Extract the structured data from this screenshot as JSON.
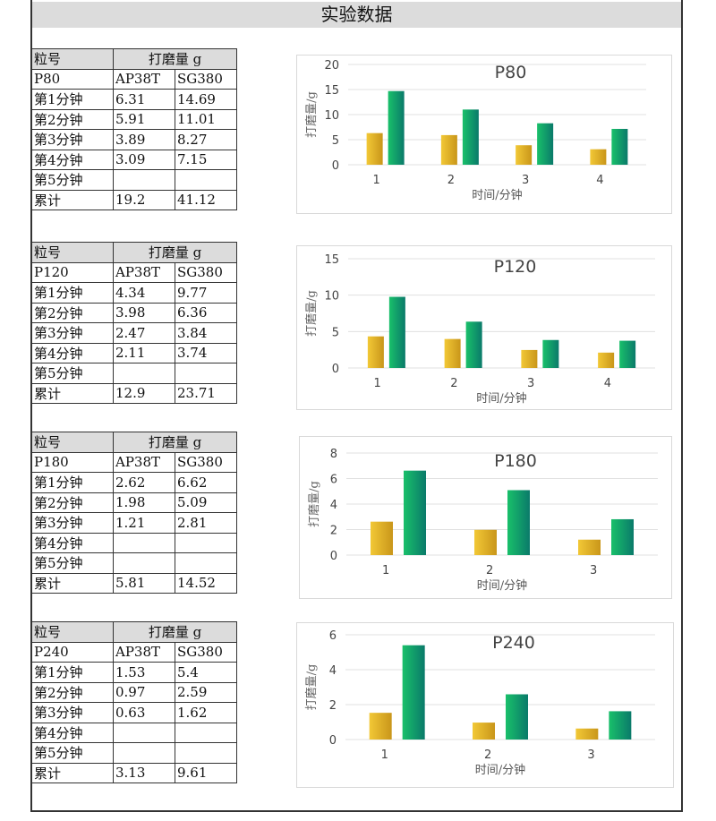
{
  "title": "实验数据",
  "tables": [
    {
      "header": [
        "粒号",
        "打磨量 g"
      ],
      "grit": "P80",
      "cols": [
        "AP38T",
        "SG380"
      ],
      "rows": [
        [
          "第1分钟",
          "6.31",
          "14.69"
        ],
        [
          "第2分钟",
          "5.91",
          "11.01"
        ],
        [
          "第3分钟",
          "3.89",
          "8.27"
        ],
        [
          "第4分钟",
          "3.09",
          "7.15"
        ],
        [
          "第5分钟",
          "",
          ""
        ],
        [
          "累计",
          "19.2",
          "41.12"
        ]
      ]
    },
    {
      "header": [
        "粒号",
        "打磨量 g"
      ],
      "grit": "P120",
      "cols": [
        "AP38T",
        "SG380"
      ],
      "rows": [
        [
          "第1分钟",
          "4.34",
          "9.77"
        ],
        [
          "第2分钟",
          "3.98",
          "6.36"
        ],
        [
          "第3分钟",
          "2.47",
          "3.84"
        ],
        [
          "第4分钟",
          "2.11",
          "3.74"
        ],
        [
          "第5分钟",
          "",
          ""
        ],
        [
          "累计",
          "12.9",
          "23.71"
        ]
      ]
    },
    {
      "header": [
        "粒号",
        "打磨量 g"
      ],
      "grit": "P180",
      "cols": [
        "AP38T",
        "SG380"
      ],
      "rows": [
        [
          "第1分钟",
          "2.62",
          "6.62"
        ],
        [
          "第2分钟",
          "1.98",
          "5.09"
        ],
        [
          "第3分钟",
          "1.21",
          "2.81"
        ],
        [
          "第4分钟",
          "",
          ""
        ],
        [
          "第5分钟",
          "",
          ""
        ],
        [
          "累计",
          "5.81",
          "14.52"
        ]
      ]
    },
    {
      "header": [
        "粒号",
        "打磨量 g"
      ],
      "grit": "P240",
      "cols": [
        "AP38T",
        "SG380"
      ],
      "rows": [
        [
          "第1分钟",
          "1.53",
          "5.4"
        ],
        [
          "第2分钟",
          "0.97",
          "2.59"
        ],
        [
          "第3分钟",
          "0.63",
          "1.62"
        ],
        [
          "第4分钟",
          "",
          ""
        ],
        [
          "第5分钟",
          "",
          ""
        ],
        [
          "累计",
          "3.13",
          "9.61"
        ]
      ]
    }
  ],
  "colors": {
    "AP38T": "#e8b820",
    "SG380": "#12a06a"
  },
  "chart_data": [
    {
      "type": "bar",
      "title": "P80",
      "xlabel": "时间/分钟",
      "ylabel": "打磨量/g",
      "categories": [
        "1",
        "2",
        "3",
        "4"
      ],
      "ylim": [
        0,
        20
      ],
      "yticks": [
        "0",
        "5",
        "10",
        "15",
        "20"
      ],
      "series": [
        {
          "name": "AP38T",
          "values": [
            6.31,
            5.91,
            3.89,
            3.09
          ]
        },
        {
          "name": "SG380",
          "values": [
            14.69,
            11.01,
            8.27,
            7.15
          ]
        }
      ]
    },
    {
      "type": "bar",
      "title": "P120",
      "xlabel": "时间/分钟",
      "ylabel": "打磨量/g",
      "categories": [
        "1",
        "2",
        "3",
        "4"
      ],
      "ylim": [
        0,
        15
      ],
      "yticks": [
        "0",
        "5",
        "10",
        "15"
      ],
      "series": [
        {
          "name": "AP38T",
          "values": [
            4.34,
            3.98,
            2.47,
            2.11
          ]
        },
        {
          "name": "SG380",
          "values": [
            9.77,
            6.36,
            3.84,
            3.74
          ]
        }
      ]
    },
    {
      "type": "bar",
      "title": "P180",
      "xlabel": "时间/分钟",
      "ylabel": "打磨量/g",
      "categories": [
        "1",
        "2",
        "3"
      ],
      "ylim": [
        0,
        8
      ],
      "yticks": [
        "0",
        "2",
        "4",
        "6",
        "8"
      ],
      "series": [
        {
          "name": "AP38T",
          "values": [
            2.62,
            1.98,
            1.21
          ]
        },
        {
          "name": "SG380",
          "values": [
            6.62,
            5.09,
            2.81
          ]
        }
      ]
    },
    {
      "type": "bar",
      "title": "P240",
      "xlabel": "时间/分钟",
      "ylabel": "打磨量/g",
      "categories": [
        "1",
        "2",
        "3"
      ],
      "ylim": [
        0,
        6
      ],
      "yticks": [
        "0",
        "2",
        "4",
        "6"
      ],
      "series": [
        {
          "name": "AP38T",
          "values": [
            1.53,
            0.97,
            0.63
          ]
        },
        {
          "name": "SG380",
          "values": [
            5.4,
            2.59,
            1.62
          ]
        }
      ]
    }
  ]
}
